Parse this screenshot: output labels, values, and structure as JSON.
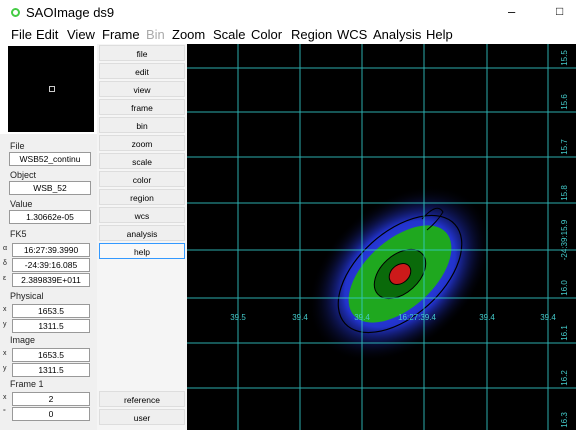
{
  "window": {
    "title": "SAOImage ds9",
    "controls": [
      "–",
      "□"
    ]
  },
  "menu": [
    "File",
    "Edit",
    "View",
    "Frame",
    "Bin",
    "Zoom",
    "Scale",
    "Color",
    "Region",
    "WCS",
    "Analysis",
    "Help"
  ],
  "info": {
    "file": {
      "label": "File",
      "value": "WSB52_continu"
    },
    "object": {
      "label": "Object",
      "value": "WSB_52"
    },
    "value": {
      "label": "Value",
      "value": "1.30662e-05"
    },
    "fk5": {
      "label": "FK5",
      "rows": [
        [
          "α",
          "16:27:39.3990"
        ],
        [
          "δ",
          "-24:39:16.085"
        ],
        [
          "ε",
          "2.389839E+011"
        ]
      ]
    },
    "physical": {
      "label": "Physical",
      "rows": [
        [
          "x",
          "1653.5"
        ],
        [
          "y",
          "1311.5"
        ]
      ]
    },
    "image": {
      "label": "Image",
      "rows": [
        [
          "x",
          "1653.5"
        ],
        [
          "y",
          "1311.5"
        ]
      ]
    },
    "frame": {
      "label": "Frame 1",
      "rows": [
        [
          "x",
          "2"
        ],
        [
          "°",
          "0"
        ]
      ]
    }
  },
  "buttons": [
    "file",
    "edit",
    "view",
    "frame",
    "bin",
    "zoom",
    "scale",
    "color",
    "region",
    "wcs",
    "analysis",
    "help"
  ],
  "bottom_buttons": [
    "reference",
    "user"
  ],
  "axes": {
    "x_labels": [
      "39.5",
      "39.4",
      "39.4",
      "16:27:39.4",
      "39.4",
      "39.4"
    ],
    "y_labels": [
      "15.5",
      "15.6",
      "15.7",
      "15.8",
      "-24:39:15.9",
      "16.0",
      "16.1",
      "16.2",
      "16.3"
    ]
  }
}
